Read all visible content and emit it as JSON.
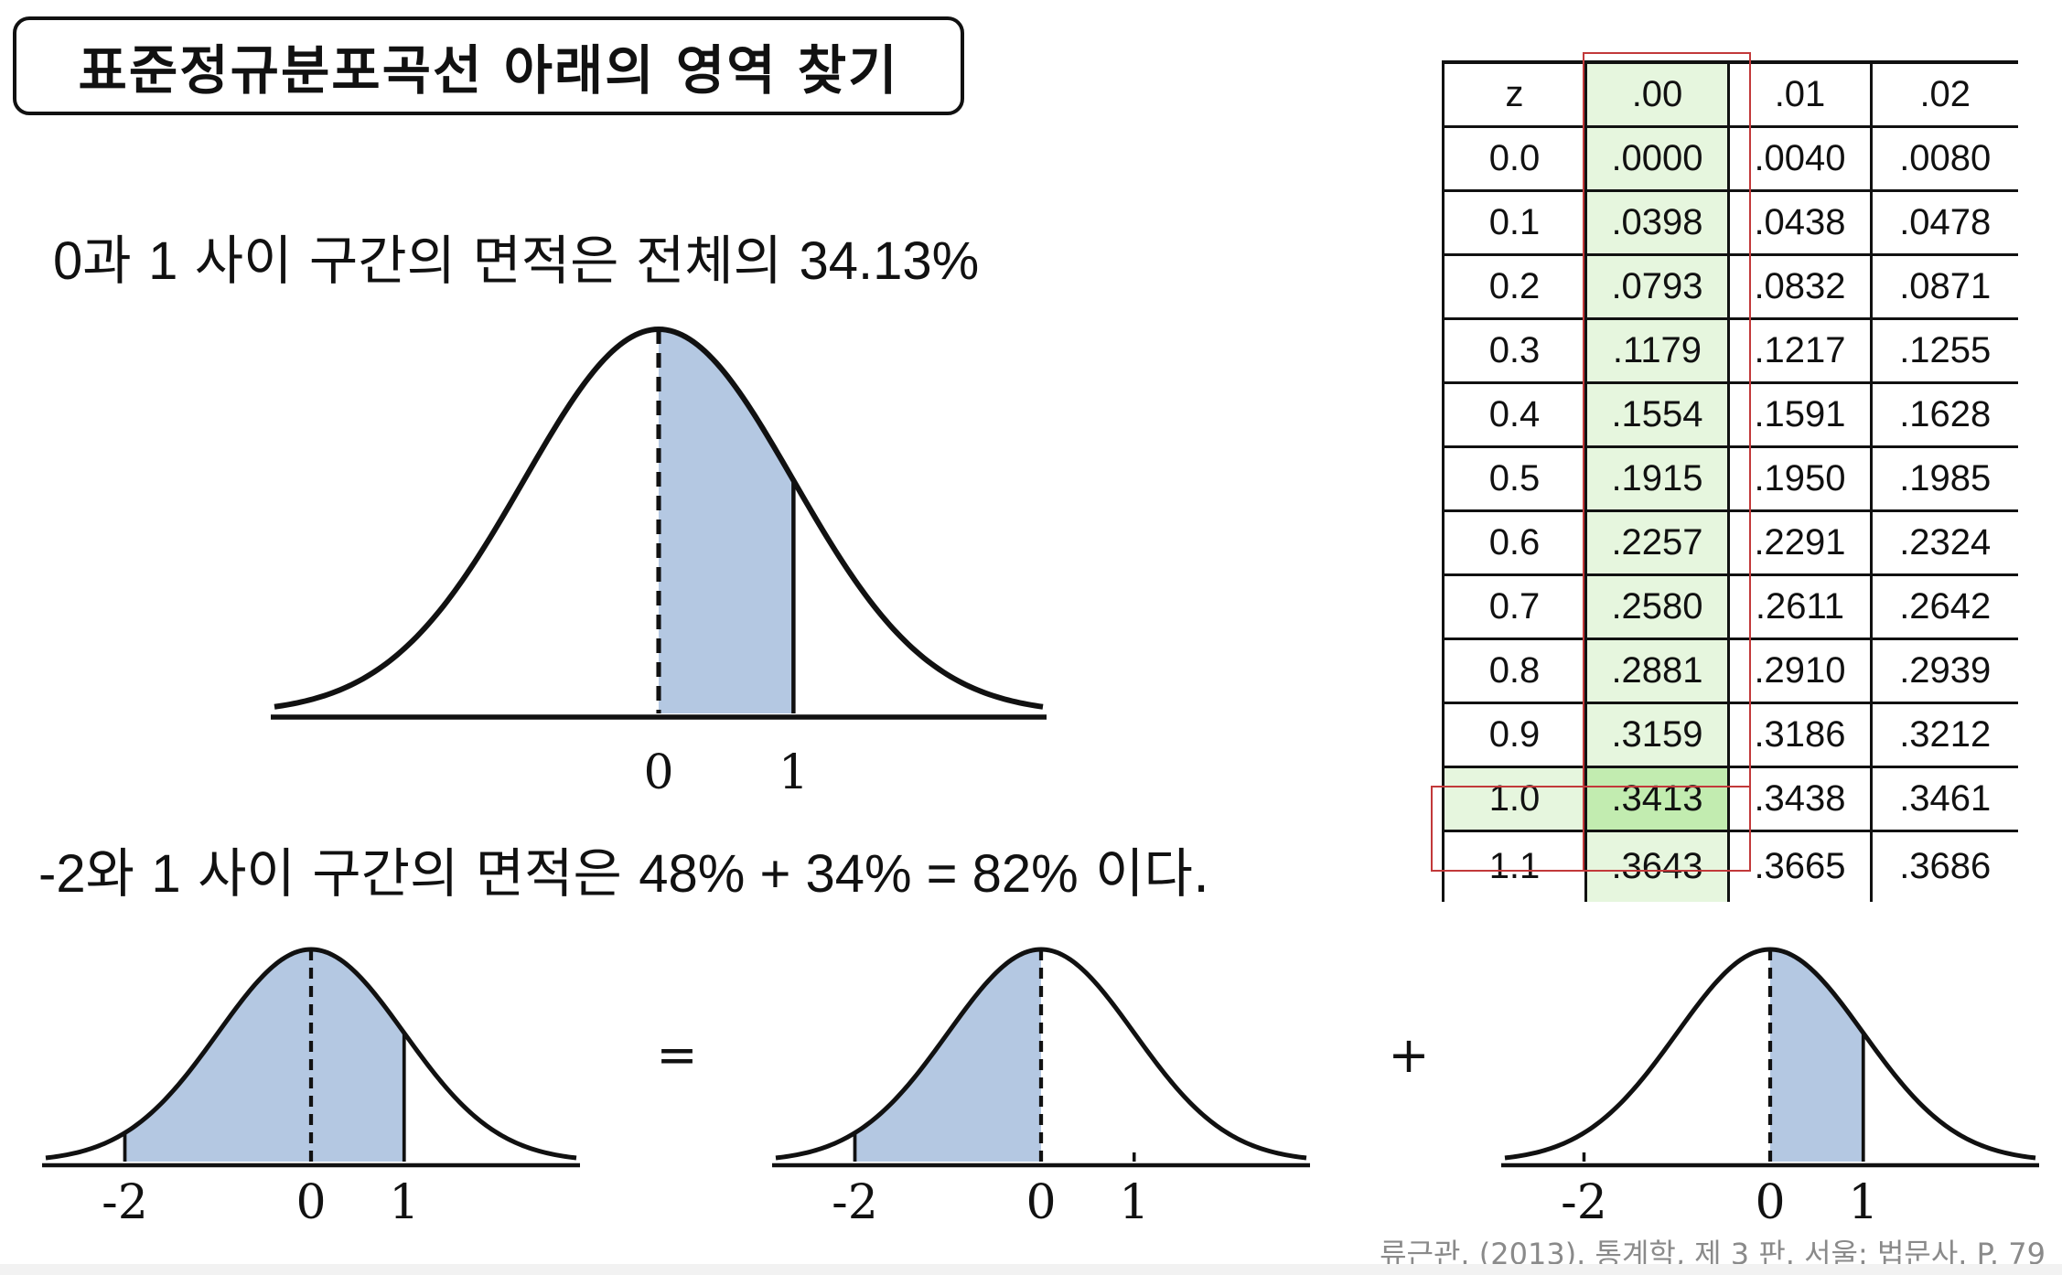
{
  "title": "표준정규분포곡선 아래의 영역 찾기",
  "statement1": {
    "num_a": "0",
    "text_a": "과 ",
    "num_b": "1",
    "text_b": " 사이 구간의 면적은 전체의 ",
    "num_c": "34.13%"
  },
  "statement2": {
    "num_a": "-2",
    "text_a": "와 ",
    "num_b": "1",
    "text_b": " 사이 구간의 면적은 ",
    "num_c": "48% + 34% = 82%",
    "text_c": " 이다."
  },
  "curve_main": {
    "shaded_from": 0,
    "shaded_to": 1,
    "tick_labels": [
      "0",
      "1"
    ]
  },
  "curve_left": {
    "shaded_from": -2,
    "shaded_to": 1,
    "tick_labels": [
      "-2",
      "0",
      "1"
    ]
  },
  "curve_middle": {
    "shaded_from": -2,
    "shaded_to": 0,
    "tick_labels": [
      "-2",
      "0",
      "1"
    ]
  },
  "curve_right": {
    "shaded_from": 0,
    "shaded_to": 1,
    "tick_labels": [
      "-2",
      "0",
      "1"
    ]
  },
  "operators": {
    "equals": "=",
    "plus": "+"
  },
  "z_table": {
    "headers": [
      "z",
      ".00",
      ".01",
      ".02"
    ],
    "rows": [
      [
        "0.0",
        ".0000",
        ".0040",
        ".0080"
      ],
      [
        "0.1",
        ".0398",
        ".0438",
        ".0478"
      ],
      [
        "0.2",
        ".0793",
        ".0832",
        ".0871"
      ],
      [
        "0.3",
        ".1179",
        ".1217",
        ".1255"
      ],
      [
        "0.4",
        ".1554",
        ".1591",
        ".1628"
      ],
      [
        "0.5",
        ".1915",
        ".1950",
        ".1985"
      ],
      [
        "0.6",
        ".2257",
        ".2291",
        ".2324"
      ],
      [
        "0.7",
        ".2580",
        ".2611",
        ".2642"
      ],
      [
        "0.8",
        ".2881",
        ".2910",
        ".2939"
      ],
      [
        "0.9",
        ".3159",
        ".3186",
        ".3212"
      ],
      [
        "1.0",
        ".3413",
        ".3438",
        ".3461"
      ],
      [
        "1.1",
        ".3643",
        ".3665",
        ".3686"
      ]
    ],
    "highlight_column": ".00",
    "highlight_row": "1.0"
  },
  "citation": "류근관. (2013). 통계학, 제 3 판. 서울: 법문사. P. 79",
  "colors": {
    "shade": "#b4c8e2",
    "highlight_green": "#e6f6de",
    "hit_green": "#c2ecb0",
    "red_box": "#c2393a",
    "citation_gray": "#8a8a8a"
  }
}
